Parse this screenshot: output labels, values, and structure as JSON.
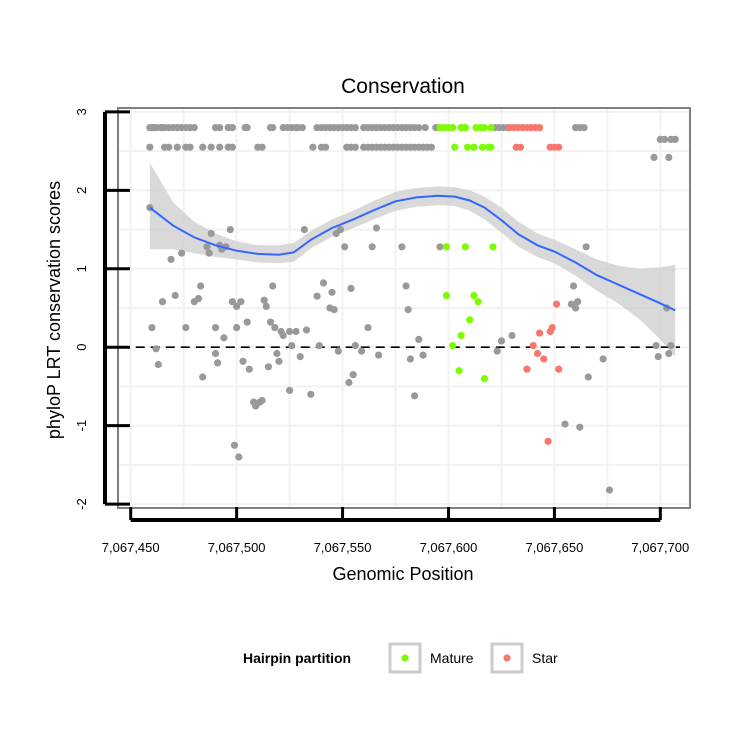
{
  "chart_data": {
    "type": "scatter",
    "title": "Conservation",
    "xlabel": "Genomic Position",
    "ylabel": "phyloP LRT conservation scores",
    "xlim": [
      7067444,
      7067714
    ],
    "ylim": [
      -2.05,
      3.05
    ],
    "x_ticks": [
      7067450,
      7067500,
      7067550,
      7067600,
      7067650,
      7067700
    ],
    "x_tick_labels": [
      "7,067,450",
      "7,067,500",
      "7,067,550",
      "7,067,600",
      "7,067,650",
      "7,067,700"
    ],
    "y_ticks": [
      -2,
      -1,
      0,
      1,
      2,
      3
    ],
    "y_tick_labels": [
      "-2",
      "-1",
      "0",
      "1",
      "2",
      "3"
    ],
    "reference_line": {
      "y": 0,
      "style": "dashed"
    },
    "legend": {
      "title": "Hairpin partition",
      "position": "bottom",
      "entries": [
        {
          "label": "Mature",
          "color": "#7cfc00"
        },
        {
          "label": "Star",
          "color": "#f8766d"
        }
      ]
    },
    "colors": {
      "other": "#999999",
      "mature": "#7cfc00",
      "star": "#f8766d",
      "smooth": "#3366ff",
      "band": "#cccccc"
    },
    "series": [
      {
        "name": "Other",
        "points": [
          [
            7067459,
            2.8
          ],
          [
            7067460,
            2.8
          ],
          [
            7067461,
            2.8
          ],
          [
            7067462,
            2.8
          ],
          [
            7067464,
            2.8
          ],
          [
            7067465,
            2.8
          ],
          [
            7067466,
            2.8
          ],
          [
            7067468,
            2.8
          ],
          [
            7067470,
            2.8
          ],
          [
            7067472,
            2.8
          ],
          [
            7067474,
            2.8
          ],
          [
            7067476,
            2.8
          ],
          [
            7067478,
            2.8
          ],
          [
            7067480,
            2.8
          ],
          [
            7067490,
            2.8
          ],
          [
            7067492,
            2.8
          ],
          [
            7067496,
            2.8
          ],
          [
            7067498,
            2.8
          ],
          [
            7067504,
            2.8
          ],
          [
            7067505,
            2.8
          ],
          [
            7067516,
            2.8
          ],
          [
            7067517,
            2.8
          ],
          [
            7067522,
            2.8
          ],
          [
            7067524,
            2.8
          ],
          [
            7067526,
            2.8
          ],
          [
            7067528,
            2.8
          ],
          [
            7067529,
            2.8
          ],
          [
            7067531,
            2.8
          ],
          [
            7067538,
            2.8
          ],
          [
            7067540,
            2.8
          ],
          [
            7067542,
            2.8
          ],
          [
            7067544,
            2.8
          ],
          [
            7067546,
            2.8
          ],
          [
            7067548,
            2.8
          ],
          [
            7067550,
            2.8
          ],
          [
            7067552,
            2.8
          ],
          [
            7067554,
            2.8
          ],
          [
            7067556,
            2.8
          ],
          [
            7067560,
            2.8
          ],
          [
            7067562,
            2.8
          ],
          [
            7067564,
            2.8
          ],
          [
            7067566,
            2.8
          ],
          [
            7067568,
            2.8
          ],
          [
            7067570,
            2.8
          ],
          [
            7067572,
            2.8
          ],
          [
            7067574,
            2.8
          ],
          [
            7067576,
            2.8
          ],
          [
            7067578,
            2.8
          ],
          [
            7067580,
            2.8
          ],
          [
            7067582,
            2.8
          ],
          [
            7067584,
            2.8
          ],
          [
            7067586,
            2.8
          ],
          [
            7067589,
            2.8
          ],
          [
            7067594,
            2.8
          ],
          [
            7067596,
            2.8
          ],
          [
            7067606,
            2.8
          ],
          [
            7067608,
            2.8
          ],
          [
            7067622,
            2.8
          ],
          [
            7067624,
            2.8
          ],
          [
            7067626,
            2.8
          ],
          [
            7067628,
            2.8
          ],
          [
            7067660,
            2.8
          ],
          [
            7067662,
            2.8
          ],
          [
            7067664,
            2.8
          ],
          [
            7067459,
            2.55
          ],
          [
            7067466,
            2.55
          ],
          [
            7067468,
            2.55
          ],
          [
            7067472,
            2.55
          ],
          [
            7067476,
            2.55
          ],
          [
            7067478,
            2.55
          ],
          [
            7067484,
            2.55
          ],
          [
            7067488,
            2.55
          ],
          [
            7067492,
            2.55
          ],
          [
            7067496,
            2.55
          ],
          [
            7067498,
            2.55
          ],
          [
            7067510,
            2.55
          ],
          [
            7067512,
            2.55
          ],
          [
            7067536,
            2.55
          ],
          [
            7067540,
            2.55
          ],
          [
            7067542,
            2.55
          ],
          [
            7067552,
            2.55
          ],
          [
            7067554,
            2.55
          ],
          [
            7067556,
            2.55
          ],
          [
            7067560,
            2.55
          ],
          [
            7067562,
            2.55
          ],
          [
            7067564,
            2.55
          ],
          [
            7067566,
            2.55
          ],
          [
            7067568,
            2.55
          ],
          [
            7067570,
            2.55
          ],
          [
            7067572,
            2.55
          ],
          [
            7067574,
            2.55
          ],
          [
            7067576,
            2.55
          ],
          [
            7067578,
            2.55
          ],
          [
            7067580,
            2.55
          ],
          [
            7067582,
            2.55
          ],
          [
            7067584,
            2.55
          ],
          [
            7067586,
            2.55
          ],
          [
            7067588,
            2.55
          ],
          [
            7067590,
            2.55
          ],
          [
            7067592,
            2.55
          ],
          [
            7067700,
            2.65
          ],
          [
            7067702,
            2.65
          ],
          [
            7067705,
            2.65
          ],
          [
            7067707,
            2.65
          ],
          [
            7067697,
            2.42
          ],
          [
            7067704,
            2.42
          ],
          [
            7067459,
            1.78
          ],
          [
            7067460,
            0.25
          ],
          [
            7067462,
            -0.02
          ],
          [
            7067463,
            -0.22
          ],
          [
            7067465,
            0.58
          ],
          [
            7067469,
            1.12
          ],
          [
            7067471,
            0.66
          ],
          [
            7067474,
            1.2
          ],
          [
            7067476,
            0.25
          ],
          [
            7067480,
            0.58
          ],
          [
            7067482,
            0.62
          ],
          [
            7067483,
            0.78
          ],
          [
            7067484,
            -0.38
          ],
          [
            7067486,
            1.28
          ],
          [
            7067487,
            1.2
          ],
          [
            7067488,
            1.45
          ],
          [
            7067490,
            0.25
          ],
          [
            7067490,
            -0.08
          ],
          [
            7067491,
            -0.2
          ],
          [
            7067492,
            1.3
          ],
          [
            7067493,
            1.25
          ],
          [
            7067494,
            0.12
          ],
          [
            7067495,
            1.28
          ],
          [
            7067497,
            1.5
          ],
          [
            7067498,
            0.58
          ],
          [
            7067499,
            -1.25
          ],
          [
            7067500,
            0.25
          ],
          [
            7067500,
            0.52
          ],
          [
            7067501,
            -1.4
          ],
          [
            7067502,
            0.58
          ],
          [
            7067503,
            -0.18
          ],
          [
            7067505,
            0.32
          ],
          [
            7067506,
            -0.28
          ],
          [
            7067508,
            -0.7
          ],
          [
            7067509,
            -0.75
          ],
          [
            7067511,
            -0.7
          ],
          [
            7067512,
            -0.68
          ],
          [
            7067513,
            0.6
          ],
          [
            7067514,
            0.52
          ],
          [
            7067515,
            -0.25
          ],
          [
            7067516,
            0.32
          ],
          [
            7067517,
            0.78
          ],
          [
            7067518,
            0.25
          ],
          [
            7067519,
            -0.08
          ],
          [
            7067520,
            -0.18
          ],
          [
            7067521,
            0.2
          ],
          [
            7067522,
            0.15
          ],
          [
            7067525,
            0.2
          ],
          [
            7067525,
            -0.55
          ],
          [
            7067526,
            0.02
          ],
          [
            7067528,
            0.2
          ],
          [
            7067530,
            -0.12
          ],
          [
            7067532,
            1.5
          ],
          [
            7067533,
            0.22
          ],
          [
            7067535,
            -0.6
          ],
          [
            7067538,
            0.65
          ],
          [
            7067539,
            0.02
          ],
          [
            7067541,
            0.82
          ],
          [
            7067544,
            0.5
          ],
          [
            7067545,
            0.7
          ],
          [
            7067546,
            0.48
          ],
          [
            7067547,
            1.45
          ],
          [
            7067548,
            -0.05
          ],
          [
            7067549,
            1.5
          ],
          [
            7067551,
            1.28
          ],
          [
            7067553,
            -0.45
          ],
          [
            7067554,
            0.75
          ],
          [
            7067555,
            -0.35
          ],
          [
            7067556,
            0.02
          ],
          [
            7067559,
            -0.05
          ],
          [
            7067562,
            0.25
          ],
          [
            7067564,
            1.28
          ],
          [
            7067566,
            1.52
          ],
          [
            7067567,
            -0.1
          ],
          [
            7067578,
            1.28
          ],
          [
            7067580,
            0.78
          ],
          [
            7067581,
            0.48
          ],
          [
            7067582,
            -0.15
          ],
          [
            7067584,
            -0.62
          ],
          [
            7067586,
            0.1
          ],
          [
            7067588,
            -0.1
          ],
          [
            7067596,
            1.28
          ],
          [
            7067623,
            -0.05
          ],
          [
            7067625,
            0.08
          ],
          [
            7067630,
            0.15
          ],
          [
            7067658,
            0.55
          ],
          [
            7067659,
            0.78
          ],
          [
            7067660,
            0.5
          ],
          [
            7067661,
            0.58
          ],
          [
            7067662,
            -1.02
          ],
          [
            7067665,
            1.28
          ],
          [
            7067666,
            -0.38
          ],
          [
            7067673,
            -0.15
          ],
          [
            7067655,
            -0.98
          ],
          [
            7067676,
            -1.82
          ],
          [
            7067698,
            0.02
          ],
          [
            7067699,
            -0.12
          ],
          [
            7067703,
            0.5
          ],
          [
            7067704,
            -0.08
          ],
          [
            7067705,
            0.02
          ]
        ]
      },
      {
        "name": "Mature",
        "points": [
          [
            7067596,
            2.8
          ],
          [
            7067598,
            2.8
          ],
          [
            7067600,
            2.8
          ],
          [
            7067602,
            2.8
          ],
          [
            7067606,
            2.8
          ],
          [
            7067608,
            2.8
          ],
          [
            7067613,
            2.8
          ],
          [
            7067615,
            2.8
          ],
          [
            7067617,
            2.8
          ],
          [
            7067620,
            2.8
          ],
          [
            7067603,
            2.55
          ],
          [
            7067609,
            2.55
          ],
          [
            7067612,
            2.55
          ],
          [
            7067616,
            2.55
          ],
          [
            7067619,
            2.55
          ],
          [
            7067620,
            2.55
          ],
          [
            7067599,
            1.28
          ],
          [
            7067608,
            1.28
          ],
          [
            7067621,
            1.28
          ],
          [
            7067599,
            0.66
          ],
          [
            7067602,
            0.02
          ],
          [
            7067605,
            -0.3
          ],
          [
            7067606,
            0.15
          ],
          [
            7067610,
            0.35
          ],
          [
            7067612,
            0.66
          ],
          [
            7067614,
            0.58
          ],
          [
            7067617,
            -0.4
          ]
        ]
      },
      {
        "name": "Star",
        "points": [
          [
            7067629,
            2.8
          ],
          [
            7067631,
            2.8
          ],
          [
            7067633,
            2.8
          ],
          [
            7067635,
            2.8
          ],
          [
            7067637,
            2.8
          ],
          [
            7067639,
            2.8
          ],
          [
            7067641,
            2.8
          ],
          [
            7067643,
            2.8
          ],
          [
            7067632,
            2.55
          ],
          [
            7067634,
            2.55
          ],
          [
            7067648,
            2.55
          ],
          [
            7067650,
            2.55
          ],
          [
            7067652,
            2.55
          ],
          [
            7067637,
            -0.28
          ],
          [
            7067640,
            0.02
          ],
          [
            7067642,
            -0.08
          ],
          [
            7067643,
            0.18
          ],
          [
            7067645,
            -0.15
          ],
          [
            7067647,
            -1.2
          ],
          [
            7067648,
            0.2
          ],
          [
            7067649,
            0.25
          ],
          [
            7067651,
            0.55
          ],
          [
            7067652,
            -0.28
          ]
        ]
      }
    ],
    "smooth": {
      "x": [
        7067459,
        7067470,
        7067480,
        7067490,
        7067500,
        7067510,
        7067520,
        7067527,
        7067535,
        7067545,
        7067555,
        7067565,
        7067575,
        7067585,
        7067595,
        7067603,
        7067610,
        7067617,
        7067625,
        7067633,
        7067642,
        7067650,
        7067660,
        7067670,
        7067680,
        7067690,
        7067700,
        7067707
      ],
      "y": [
        1.78,
        1.55,
        1.4,
        1.3,
        1.23,
        1.19,
        1.18,
        1.21,
        1.37,
        1.52,
        1.63,
        1.75,
        1.86,
        1.91,
        1.93,
        1.92,
        1.87,
        1.78,
        1.62,
        1.44,
        1.3,
        1.22,
        1.08,
        0.92,
        0.8,
        0.68,
        0.56,
        0.47
      ],
      "upper": [
        2.35,
        1.85,
        1.6,
        1.45,
        1.35,
        1.3,
        1.3,
        1.33,
        1.48,
        1.63,
        1.74,
        1.87,
        1.98,
        2.03,
        2.05,
        2.04,
        2.0,
        1.92,
        1.78,
        1.6,
        1.45,
        1.37,
        1.25,
        1.12,
        1.04,
        1.0,
        1.02,
        1.05
      ],
      "lower": [
        1.25,
        1.25,
        1.2,
        1.15,
        1.12,
        1.08,
        1.07,
        1.09,
        1.26,
        1.41,
        1.52,
        1.63,
        1.74,
        1.79,
        1.81,
        1.8,
        1.74,
        1.63,
        1.46,
        1.28,
        1.15,
        1.07,
        0.91,
        0.72,
        0.56,
        0.36,
        0.1,
        -0.12
      ]
    }
  }
}
